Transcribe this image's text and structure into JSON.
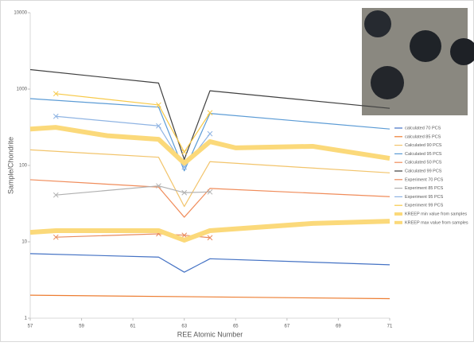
{
  "chart_data": {
    "type": "line",
    "x_label": "REE Atomic Number",
    "y_label": "Sample/Chondrite",
    "xlim": [
      57,
      71
    ],
    "xticks": [
      57,
      59,
      61,
      63,
      65,
      67,
      69,
      71
    ],
    "ylim": [
      1,
      10000
    ],
    "yticks": [
      1,
      10,
      100,
      1000,
      10000
    ],
    "log_y": true,
    "legend": "right",
    "series": [
      {
        "name": "calculated 70 PCS",
        "color": "#4472c4",
        "x": [
          57,
          62,
          63,
          64,
          71
        ],
        "values": [
          7,
          6.3,
          4,
          6,
          5
        ]
      },
      {
        "name": "calculated 85 PCS",
        "color": "#ed7d31",
        "x": [
          57,
          71
        ],
        "values": [
          2,
          1.8
        ]
      },
      {
        "name": "Calculated 90 PCS",
        "color": "#f2c46b",
        "x": [
          57,
          62,
          63,
          64,
          71
        ],
        "values": [
          160,
          128,
          29,
          112,
          80
        ]
      },
      {
        "name": "Calculated 95 PCS",
        "color": "#5b9bd5",
        "x": [
          57,
          62,
          63,
          64,
          71
        ],
        "values": [
          750,
          580,
          85,
          480,
          300
        ]
      },
      {
        "name": "Calculated 50 PCS",
        "color": "#f08c5a",
        "x": [
          57,
          62,
          63,
          64,
          71
        ],
        "values": [
          65,
          52,
          21,
          50,
          39
        ]
      },
      {
        "name": "Calculated 99 PCS",
        "color": "#404040",
        "x": [
          57,
          62,
          63,
          64,
          71
        ],
        "values": [
          1800,
          1200,
          120,
          950,
          560
        ]
      },
      {
        "name": "Experiment 70 PCS",
        "color": "#e98a5c",
        "marker": "x",
        "x": [
          58,
          62,
          63,
          64
        ],
        "values": [
          11.5,
          12.7,
          12.2,
          11.3
        ]
      },
      {
        "name": "Experiment 85 PCS",
        "color": "#b0b0b0",
        "marker": "x",
        "x": [
          58,
          62,
          63,
          64
        ],
        "values": [
          41,
          54,
          44,
          45
        ]
      },
      {
        "name": "Experiment 95 PCS",
        "color": "#8fb4e3",
        "marker": "x",
        "x": [
          58,
          62,
          63,
          64
        ],
        "values": [
          440,
          330,
          95,
          260
        ]
      },
      {
        "name": "Experiment 99 PCS",
        "color": "#f7c948",
        "marker": "x",
        "x": [
          58,
          62,
          63,
          64
        ],
        "values": [
          870,
          620,
          150,
          490
        ]
      },
      {
        "name": "KREEP min value from samples",
        "color": "#fbd97a",
        "width": 6,
        "x": [
          57,
          58,
          62,
          63,
          64,
          68,
          71
        ],
        "values": [
          13.3,
          14,
          14,
          10.5,
          14,
          17.4,
          18.6
        ]
      },
      {
        "name": "KREEP max value from samples",
        "color": "#fbd97a",
        "width": 6,
        "x": [
          57,
          58,
          60,
          62,
          63,
          64,
          65,
          68,
          71
        ],
        "values": [
          300,
          315,
          245,
          220,
          107,
          205,
          170,
          178,
          124
        ]
      }
    ]
  }
}
